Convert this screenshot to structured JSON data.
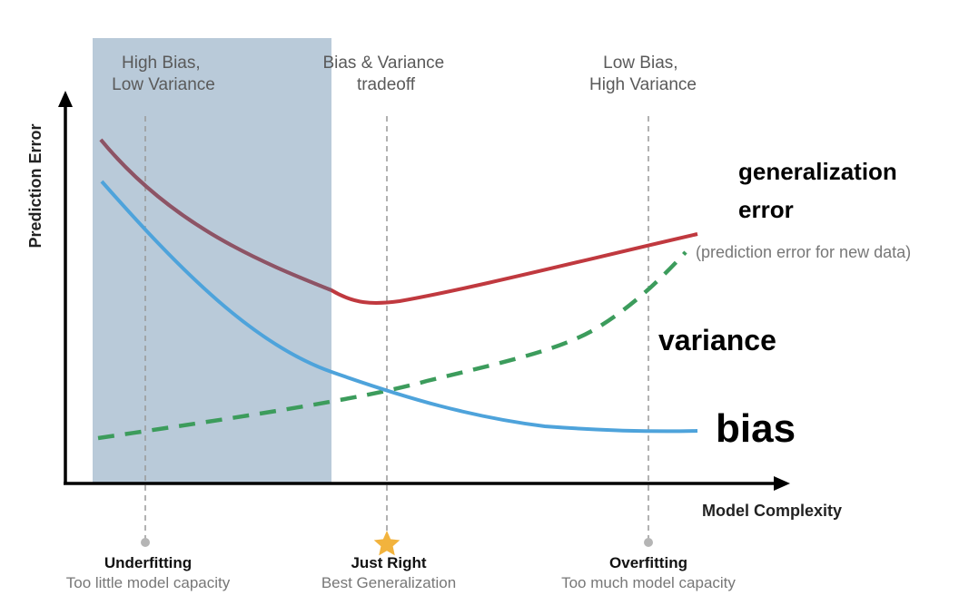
{
  "regions": {
    "left": [
      "High Bias,",
      "Low Variance"
    ],
    "middle": [
      "Bias & Variance",
      "tradeoff"
    ],
    "right": [
      "Low Bias,",
      "High Variance"
    ]
  },
  "axes": {
    "y_label": "Prediction Error",
    "x_label": "Model Complexity"
  },
  "curves": {
    "generalization": [
      "generalization",
      "error"
    ],
    "generalization_note": "(prediction error for new data)",
    "variance": "variance",
    "bias": "bias"
  },
  "bottom": {
    "left": {
      "title": "Underfitting",
      "sub": "Too little model capacity"
    },
    "middle": {
      "title": "Just Right",
      "sub": "Best Generalization"
    },
    "right": {
      "title": "Overfitting",
      "sub": "Too much model capacity"
    }
  },
  "colors": {
    "shade": "#b9cad9",
    "generalization": "#c0393f",
    "generalization_overlap": "#8c5466",
    "bias": "#4ea3db",
    "variance": "#3c9c5c",
    "axis": "#000000",
    "star": "#f2b33d",
    "marker": "#b5b5b5"
  }
}
